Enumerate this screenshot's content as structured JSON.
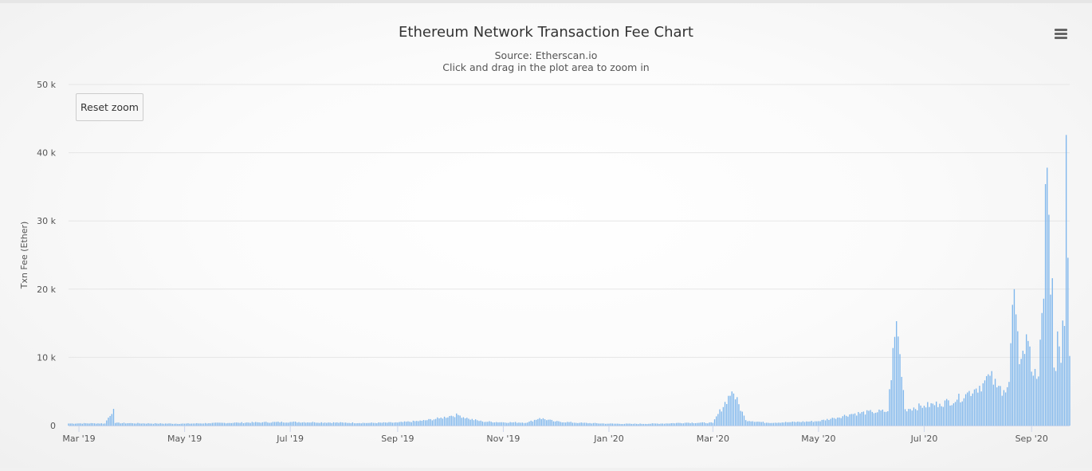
{
  "header": {
    "title": "Ethereum Network Transaction Fee Chart",
    "subtitle_line1": "Source: Etherscan.io",
    "subtitle_line2": "Click and drag in the plot area to zoom in"
  },
  "toolbar": {
    "reset_zoom_label": "Reset zoom",
    "menu_icon": "hamburger-menu-icon"
  },
  "colors": {
    "bar": "#7cb5ec",
    "bar_edge": "#5a9bd6",
    "grid": "#e6e6e6",
    "axis": "#ccd6eb"
  },
  "chart_data": {
    "type": "bar",
    "title": "Ethereum Network Transaction Fee Chart",
    "subtitle": "Source: Etherscan.io",
    "ylabel": "Txn Fee (Ether)",
    "xlabel": "",
    "ylim": [
      0,
      50000
    ],
    "xlim": [
      "2019-02-23",
      "2020-09-23"
    ],
    "y_ticks": [
      {
        "value": 0,
        "label": "0"
      },
      {
        "value": 10000,
        "label": "10 k"
      },
      {
        "value": 20000,
        "label": "20 k"
      },
      {
        "value": 30000,
        "label": "30 k"
      },
      {
        "value": 40000,
        "label": "40 k"
      },
      {
        "value": 50000,
        "label": "50 k"
      }
    ],
    "x_ticks": [
      {
        "date": "2019-03-01",
        "label": "Mar '19"
      },
      {
        "date": "2019-05-01",
        "label": "May '19"
      },
      {
        "date": "2019-07-01",
        "label": "Jul '19"
      },
      {
        "date": "2019-09-01",
        "label": "Sep '19"
      },
      {
        "date": "2019-11-01",
        "label": "Nov '19"
      },
      {
        "date": "2020-01-01",
        "label": "Jan '20"
      },
      {
        "date": "2020-03-01",
        "label": "Mar '20"
      },
      {
        "date": "2020-05-01",
        "label": "May '20"
      },
      {
        "date": "2020-07-01",
        "label": "Jul '20"
      },
      {
        "date": "2020-09-01",
        "label": "Sep '20"
      }
    ],
    "grid": true,
    "legend": "none",
    "series": [
      {
        "data": [
          [
            "2019-02-23",
            300
          ],
          [
            "2019-03-01",
            320
          ],
          [
            "2019-03-10",
            330
          ],
          [
            "2019-03-16",
            310
          ],
          [
            "2019-03-21",
            2450
          ],
          [
            "2019-03-22",
            380
          ],
          [
            "2019-04-01",
            340
          ],
          [
            "2019-04-15",
            300
          ],
          [
            "2019-05-01",
            280
          ],
          [
            "2019-05-15",
            350
          ],
          [
            "2019-06-01",
            420
          ],
          [
            "2019-06-15",
            480
          ],
          [
            "2019-07-01",
            520
          ],
          [
            "2019-07-15",
            480
          ],
          [
            "2019-08-01",
            420
          ],
          [
            "2019-08-15",
            380
          ],
          [
            "2019-09-01",
            450
          ],
          [
            "2019-09-15",
            700
          ],
          [
            "2019-09-25",
            1050
          ],
          [
            "2019-10-01",
            1400
          ],
          [
            "2019-10-06",
            1550
          ],
          [
            "2019-10-12",
            1000
          ],
          [
            "2019-10-20",
            600
          ],
          [
            "2019-11-01",
            480
          ],
          [
            "2019-11-15",
            450
          ],
          [
            "2019-11-22",
            1100
          ],
          [
            "2019-12-01",
            600
          ],
          [
            "2019-12-15",
            400
          ],
          [
            "2020-01-01",
            280
          ],
          [
            "2020-01-15",
            250
          ],
          [
            "2020-02-01",
            300
          ],
          [
            "2020-02-15",
            420
          ],
          [
            "2020-03-01",
            400
          ],
          [
            "2020-03-12",
            5000
          ],
          [
            "2020-03-13",
            4700
          ],
          [
            "2020-03-20",
            800
          ],
          [
            "2020-04-01",
            420
          ],
          [
            "2020-04-15",
            500
          ],
          [
            "2020-05-01",
            650
          ],
          [
            "2020-05-10",
            1100
          ],
          [
            "2020-05-20",
            1700
          ],
          [
            "2020-06-01",
            2000
          ],
          [
            "2020-06-10",
            2100
          ],
          [
            "2020-06-14",
            13000
          ],
          [
            "2020-06-15",
            15300
          ],
          [
            "2020-06-20",
            2400
          ],
          [
            "2020-07-01",
            2900
          ],
          [
            "2020-07-10",
            3200
          ],
          [
            "2020-07-20",
            3800
          ],
          [
            "2020-07-25",
            4600
          ],
          [
            "2020-07-30",
            5300
          ],
          [
            "2020-08-04",
            6200
          ],
          [
            "2020-08-08",
            7300
          ],
          [
            "2020-08-12",
            5600
          ],
          [
            "2020-08-16",
            5200
          ],
          [
            "2020-08-19",
            6400
          ],
          [
            "2020-08-21",
            17700
          ],
          [
            "2020-08-22",
            20000
          ],
          [
            "2020-08-23",
            16300
          ],
          [
            "2020-08-25",
            9000
          ],
          [
            "2020-08-28",
            10500
          ],
          [
            "2020-08-30",
            12400
          ],
          [
            "2020-09-01",
            7900
          ],
          [
            "2020-09-03",
            8300
          ],
          [
            "2020-09-05",
            7200
          ],
          [
            "2020-09-07",
            16500
          ],
          [
            "2020-09-08",
            18600
          ],
          [
            "2020-09-09",
            35400
          ],
          [
            "2020-09-10",
            37800
          ],
          [
            "2020-09-11",
            30900
          ],
          [
            "2020-09-12",
            19200
          ],
          [
            "2020-09-13",
            21600
          ],
          [
            "2020-09-14",
            8500
          ],
          [
            "2020-09-15",
            8000
          ],
          [
            "2020-09-16",
            13800
          ],
          [
            "2020-09-17",
            11600
          ],
          [
            "2020-09-18",
            9200
          ],
          [
            "2020-09-19",
            15400
          ],
          [
            "2020-09-20",
            14600
          ],
          [
            "2020-09-21",
            42600
          ],
          [
            "2020-09-22",
            24600
          ],
          [
            "2020-09-23",
            10200
          ]
        ]
      }
    ]
  }
}
